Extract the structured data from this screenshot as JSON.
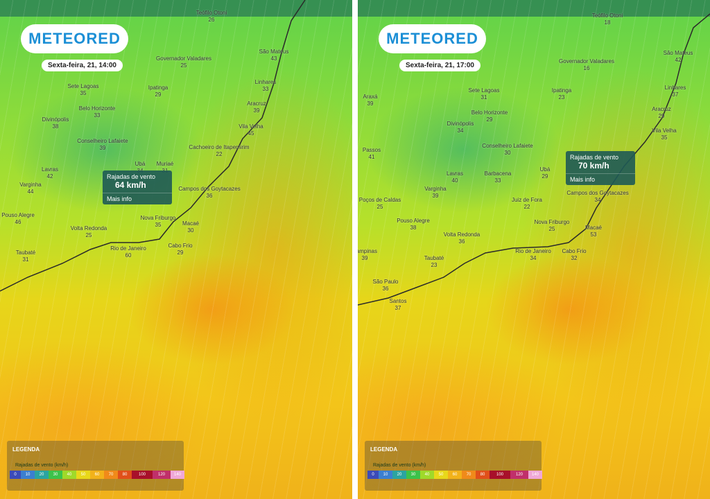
{
  "panels": [
    {
      "logo": "METEORED",
      "date": "Sexta-feira, 21, 14:00",
      "cities": [
        {
          "name": "Teófilo Otoni",
          "value": 26
        },
        {
          "name": "São Mateus",
          "value": 43
        },
        {
          "name": "Governador Valadares",
          "value": 25
        },
        {
          "name": "Sete Lagoas",
          "value": 35
        },
        {
          "name": "Ipatinga",
          "value": 29
        },
        {
          "name": "Linhares",
          "value": 33
        },
        {
          "name": "Belo Horizonte",
          "value": 33
        },
        {
          "name": "Aracruz",
          "value": 39
        },
        {
          "name": "Divinópolis",
          "value": 38
        },
        {
          "name": "Vila Velha",
          "value": 45
        },
        {
          "name": "Conselheiro Lafaiete",
          "value": 39
        },
        {
          "name": "Cachoeiro de Itapemirim",
          "value": 22
        },
        {
          "name": "Lavras",
          "value": 42
        },
        {
          "name": "Ubá",
          "value": 34
        },
        {
          "name": "Muriaé",
          "value": 31
        },
        {
          "name": "Varginha",
          "value": 44
        },
        {
          "name": "Campos dos Goytacazes",
          "value": 36
        },
        {
          "name": "Pouso Alegre",
          "value": 46
        },
        {
          "name": "Nova Friburgo",
          "value": 35
        },
        {
          "name": "Macaé",
          "value": 30
        },
        {
          "name": "Volta Redonda",
          "value": 25
        },
        {
          "name": "Rio de Janeiro",
          "value": 60
        },
        {
          "name": "Cabo Frio",
          "value": 29
        },
        {
          "name": "Taubaté",
          "value": 31
        }
      ],
      "tooltip": {
        "title": "Rajadas de vento",
        "value": "64 km/h",
        "link": "Mais info"
      },
      "legend": {
        "title": "LEGENDA",
        "label": "Rajadas de vento (km/h)",
        "scale": [
          0,
          10,
          20,
          30,
          40,
          50,
          60,
          70,
          80,
          100,
          120,
          140
        ]
      }
    },
    {
      "logo": "METEORED",
      "date": "Sexta-feira, 21, 17:00",
      "cities": [
        {
          "name": "Teófilo Otoni",
          "value": 18
        },
        {
          "name": "São Mateus",
          "value": 42
        },
        {
          "name": "Governador Valadares",
          "value": 16
        },
        {
          "name": "Araxá",
          "value": 39
        },
        {
          "name": "Sete Lagoas",
          "value": 31
        },
        {
          "name": "Ipatinga",
          "value": 23
        },
        {
          "name": "Linhares",
          "value": 37
        },
        {
          "name": "Belo Horizonte",
          "value": 29
        },
        {
          "name": "Aracruz",
          "value": 29
        },
        {
          "name": "Divinópolis",
          "value": 34
        },
        {
          "name": "Vila Velha",
          "value": 35
        },
        {
          "name": "Passos",
          "value": 41
        },
        {
          "name": "Conselheiro Lafaiete",
          "value": 30
        },
        {
          "name": "Ubá",
          "value": 29
        },
        {
          "name": "Lavras",
          "value": 40
        },
        {
          "name": "Barbacena",
          "value": 33
        },
        {
          "name": "Varginha",
          "value": 39
        },
        {
          "name": "Juiz de Fora",
          "value": 22
        },
        {
          "name": "Campos dos Goytacazes",
          "value": 34
        },
        {
          "name": "Poços de Caldas",
          "value": 25
        },
        {
          "name": "Pouso Alegre",
          "value": 38
        },
        {
          "name": "Nova Friburgo",
          "value": 25
        },
        {
          "name": "Macaé",
          "value": 53
        },
        {
          "name": "Volta Redonda",
          "value": 36
        },
        {
          "name": "Rio de Janeiro",
          "value": 34
        },
        {
          "name": "Cabo Frio",
          "value": 32
        },
        {
          "name": "Campinas",
          "value": 39
        },
        {
          "name": "Taubaté",
          "value": 23
        },
        {
          "name": "São Paulo",
          "value": 36
        },
        {
          "name": "Santos",
          "value": 37
        }
      ],
      "tooltip": {
        "title": "Rajadas de vento",
        "value": "70 km/h",
        "link": "Mais info"
      },
      "legend": {
        "title": "LEGENDA",
        "label": "Rajadas de vento (km/h)",
        "scale": [
          0,
          10,
          20,
          30,
          40,
          50,
          60,
          70,
          80,
          100,
          120,
          140
        ]
      }
    }
  ]
}
